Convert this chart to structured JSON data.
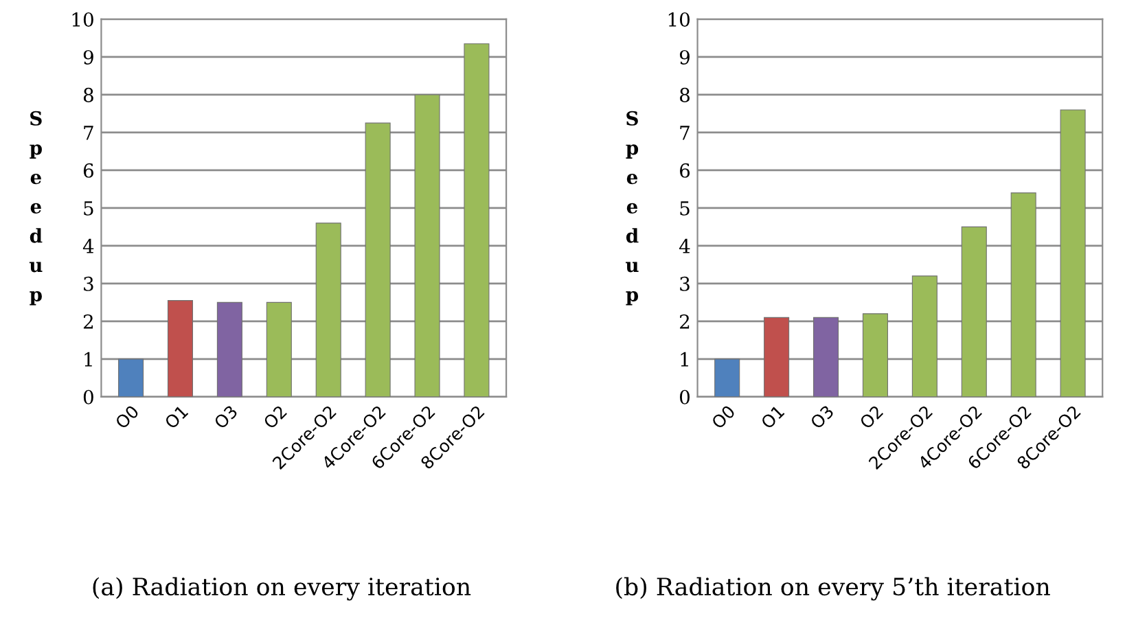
{
  "chart_data": [
    {
      "type": "bar",
      "categories": [
        "O0",
        "O1",
        "O3",
        "O2",
        "2Core-O2",
        "4Core-O2",
        "6Core-O2",
        "8Core-O2"
      ],
      "values": [
        1.0,
        2.55,
        2.5,
        2.5,
        4.6,
        7.25,
        8.0,
        9.35
      ],
      "colors": [
        "#4f81bd",
        "#c0504d",
        "#8064a2",
        "#9bbb59",
        "#9bbb59",
        "#9bbb59",
        "#9bbb59",
        "#9bbb59"
      ],
      "ylabel": "Speedup",
      "ylim": [
        0,
        10
      ],
      "yticks": [
        0,
        1,
        2,
        3,
        4,
        5,
        6,
        7,
        8,
        9,
        10
      ],
      "grid": "y",
      "annotations": [
        "(a) Radiation on every iteration"
      ]
    },
    {
      "type": "bar",
      "categories": [
        "O0",
        "O1",
        "O3",
        "O2",
        "2Core-O2",
        "4Core-O2",
        "6Core-O2",
        "8Core-O2"
      ],
      "values": [
        1.0,
        2.1,
        2.1,
        2.2,
        3.2,
        4.5,
        5.4,
        7.6
      ],
      "colors": [
        "#4f81bd",
        "#c0504d",
        "#8064a2",
        "#9bbb59",
        "#9bbb59",
        "#9bbb59",
        "#9bbb59",
        "#9bbb59"
      ],
      "ylabel": "Speedup",
      "ylim": [
        0,
        10
      ],
      "yticks": [
        0,
        1,
        2,
        3,
        4,
        5,
        6,
        7,
        8,
        9,
        10
      ],
      "grid": "y",
      "annotations": [
        "(b) Radiation on every 5’th iteration"
      ]
    }
  ]
}
